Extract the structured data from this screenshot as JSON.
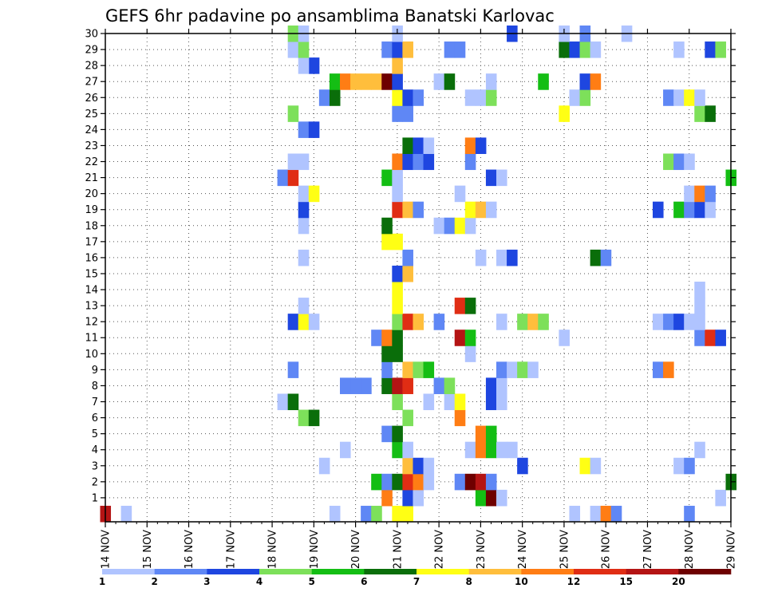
{
  "chart_data": {
    "type": "heatmap",
    "title": "GEFS 6hr padavine po ansamblima Banatski Karlovac",
    "x_tick_labels": [
      "14 NOV",
      "15 NOV",
      "16 NOV",
      "17 NOV",
      "18 NOV",
      "19 NOV",
      "20 NOV",
      "21 NOV",
      "22 NOV",
      "23 NOV",
      "24 NOV",
      "25 NOV",
      "26 NOV",
      "27 NOV",
      "28 NOV",
      "29 NOV"
    ],
    "y_tick_labels": [
      "1",
      "2",
      "3",
      "4",
      "5",
      "6",
      "7",
      "8",
      "9",
      "10",
      "11",
      "12",
      "13",
      "14",
      "15",
      "16",
      "17",
      "18",
      "19",
      "20",
      "21",
      "22",
      "23",
      "24",
      "25",
      "26",
      "27",
      "28",
      "29",
      "30"
    ],
    "x_range_days": [
      14,
      29
    ],
    "y_range": [
      0,
      30
    ],
    "grid": true,
    "colorbar": {
      "placement": "bottom",
      "tick_labels": [
        "1",
        "2",
        "3",
        "4",
        "5",
        "6",
        "7",
        "8",
        "10",
        "12",
        "15",
        "20"
      ],
      "colors": [
        "#b0c4ff",
        "#5f87f5",
        "#1e46e0",
        "#7de05a",
        "#14be14",
        "#0a6e0a",
        "#ffff14",
        "#ffbe3c",
        "#ff7d14",
        "#e02d14",
        "#b41414",
        "#6e0000"
      ]
    },
    "cells": [
      {
        "x": "19.5",
        "y": 0,
        "c": 0
      },
      {
        "x": "28.0",
        "y": 0,
        "c": 1
      },
      {
        "x": "20.25",
        "y": 0,
        "c": 1
      },
      {
        "x": "20.5",
        "y": 0,
        "c": 3
      },
      {
        "x": "21.0",
        "y": 0,
        "c": 6
      },
      {
        "x": "21.25",
        "y": 0,
        "c": 6
      },
      {
        "x": "14.0",
        "y": 0,
        "c": 10
      },
      {
        "x": "14.5",
        "y": 0,
        "c": 0
      },
      {
        "x": "25.25",
        "y": 0,
        "c": 0
      },
      {
        "x": "25.75",
        "y": 0,
        "c": 0
      },
      {
        "x": "26.0",
        "y": 0,
        "c": 8
      },
      {
        "x": "26.25",
        "y": 0,
        "c": 1
      },
      {
        "x": "20.75",
        "y": 1,
        "c": 8
      },
      {
        "x": "21.25",
        "y": 1,
        "c": 2
      },
      {
        "x": "21.5",
        "y": 1,
        "c": 0
      },
      {
        "x": "23.0",
        "y": 1,
        "c": 4
      },
      {
        "x": "23.25",
        "y": 1,
        "c": 11
      },
      {
        "x": "23.5",
        "y": 1,
        "c": 0
      },
      {
        "x": "28.75",
        "y": 1,
        "c": 0
      },
      {
        "x": "20.5",
        "y": 2,
        "c": 4
      },
      {
        "x": "20.75",
        "y": 2,
        "c": 1
      },
      {
        "x": "21.0",
        "y": 2,
        "c": 5
      },
      {
        "x": "21.25",
        "y": 2,
        "c": 9
      },
      {
        "x": "21.5",
        "y": 2,
        "c": 8
      },
      {
        "x": "21.75",
        "y": 2,
        "c": 0
      },
      {
        "x": "22.5",
        "y": 2,
        "c": 1
      },
      {
        "x": "22.75",
        "y": 2,
        "c": 11
      },
      {
        "x": "23.0",
        "y": 2,
        "c": 10
      },
      {
        "x": "23.25",
        "y": 2,
        "c": 1
      },
      {
        "x": "29.0",
        "y": 2,
        "c": 5
      },
      {
        "x": "19.25",
        "y": 3,
        "c": 0
      },
      {
        "x": "21.25",
        "y": 3,
        "c": 7
      },
      {
        "x": "21.5",
        "y": 3,
        "c": 2
      },
      {
        "x": "21.75",
        "y": 3,
        "c": 0
      },
      {
        "x": "24.0",
        "y": 3,
        "c": 2
      },
      {
        "x": "25.5",
        "y": 3,
        "c": 6
      },
      {
        "x": "25.75",
        "y": 3,
        "c": 0
      },
      {
        "x": "27.75",
        "y": 3,
        "c": 0
      },
      {
        "x": "28.0",
        "y": 3,
        "c": 1
      },
      {
        "x": "19.75",
        "y": 4,
        "c": 0
      },
      {
        "x": "21.0",
        "y": 4,
        "c": 4
      },
      {
        "x": "21.25",
        "y": 4,
        "c": 0
      },
      {
        "x": "22.75",
        "y": 4,
        "c": 0
      },
      {
        "x": "23.0",
        "y": 4,
        "c": 8
      },
      {
        "x": "23.25",
        "y": 4,
        "c": 4
      },
      {
        "x": "23.5",
        "y": 4,
        "c": 0
      },
      {
        "x": "23.75",
        "y": 4,
        "c": 0
      },
      {
        "x": "28.25",
        "y": 4,
        "c": 0
      },
      {
        "x": "20.75",
        "y": 5,
        "c": 1
      },
      {
        "x": "21.0",
        "y": 5,
        "c": 5
      },
      {
        "x": "23.0",
        "y": 5,
        "c": 8
      },
      {
        "x": "23.25",
        "y": 5,
        "c": 4
      },
      {
        "x": "18.75",
        "y": 6,
        "c": 3
      },
      {
        "x": "19.0",
        "y": 6,
        "c": 5
      },
      {
        "x": "21.25",
        "y": 6,
        "c": 3
      },
      {
        "x": "22.5",
        "y": 6,
        "c": 8
      },
      {
        "x": "18.25",
        "y": 7,
        "c": 0
      },
      {
        "x": "18.5",
        "y": 7,
        "c": 5
      },
      {
        "x": "21.0",
        "y": 7,
        "c": 3
      },
      {
        "x": "21.75",
        "y": 7,
        "c": 0
      },
      {
        "x": "22.25",
        "y": 7,
        "c": 0
      },
      {
        "x": "22.5",
        "y": 7,
        "c": 6
      },
      {
        "x": "23.25",
        "y": 7,
        "c": 2
      },
      {
        "x": "23.5",
        "y": 7,
        "c": 0
      },
      {
        "x": "19.75",
        "y": 8,
        "c": 1
      },
      {
        "x": "20.0",
        "y": 8,
        "c": 1
      },
      {
        "x": "20.25",
        "y": 8,
        "c": 1
      },
      {
        "x": "20.75",
        "y": 8,
        "c": 5
      },
      {
        "x": "21.0",
        "y": 8,
        "c": 10
      },
      {
        "x": "21.25",
        "y": 8,
        "c": 9
      },
      {
        "x": "22.0",
        "y": 8,
        "c": 1
      },
      {
        "x": "22.25",
        "y": 8,
        "c": 3
      },
      {
        "x": "23.25",
        "y": 8,
        "c": 2
      },
      {
        "x": "23.5",
        "y": 8,
        "c": 0
      },
      {
        "x": "18.5",
        "y": 9,
        "c": 1
      },
      {
        "x": "20.75",
        "y": 9,
        "c": 1
      },
      {
        "x": "21.25",
        "y": 9,
        "c": 7
      },
      {
        "x": "21.5",
        "y": 9,
        "c": 3
      },
      {
        "x": "21.75",
        "y": 9,
        "c": 4
      },
      {
        "x": "23.5",
        "y": 9,
        "c": 1
      },
      {
        "x": "23.75",
        "y": 9,
        "c": 0
      },
      {
        "x": "24.0",
        "y": 9,
        "c": 3
      },
      {
        "x": "24.25",
        "y": 9,
        "c": 0
      },
      {
        "x": "27.25",
        "y": 9,
        "c": 1
      },
      {
        "x": "27.5",
        "y": 9,
        "c": 8
      },
      {
        "x": "20.75",
        "y": 10,
        "c": 5
      },
      {
        "x": "21.0",
        "y": 10,
        "c": 5
      },
      {
        "x": "22.75",
        "y": 10,
        "c": 0
      },
      {
        "x": "20.5",
        "y": 11,
        "c": 1
      },
      {
        "x": "20.75",
        "y": 11,
        "c": 8
      },
      {
        "x": "21.0",
        "y": 11,
        "c": 5
      },
      {
        "x": "22.5",
        "y": 11,
        "c": 10
      },
      {
        "x": "22.75",
        "y": 11,
        "c": 4
      },
      {
        "x": "25.0",
        "y": 11,
        "c": 0
      },
      {
        "x": "28.25",
        "y": 11,
        "c": 1
      },
      {
        "x": "28.5",
        "y": 11,
        "c": 9
      },
      {
        "x": "28.75",
        "y": 11,
        "c": 2
      },
      {
        "x": "18.5",
        "y": 12,
        "c": 2
      },
      {
        "x": "18.75",
        "y": 12,
        "c": 6
      },
      {
        "x": "19.0",
        "y": 12,
        "c": 0
      },
      {
        "x": "21.0",
        "y": 12,
        "c": 3
      },
      {
        "x": "21.25",
        "y": 12,
        "c": 9
      },
      {
        "x": "21.5",
        "y": 12,
        "c": 7
      },
      {
        "x": "22.0",
        "y": 12,
        "c": 1
      },
      {
        "x": "23.5",
        "y": 12,
        "c": 0
      },
      {
        "x": "24.0",
        "y": 12,
        "c": 3
      },
      {
        "x": "24.25",
        "y": 12,
        "c": 7
      },
      {
        "x": "24.5",
        "y": 12,
        "c": 3
      },
      {
        "x": "27.25",
        "y": 12,
        "c": 0
      },
      {
        "x": "27.5",
        "y": 12,
        "c": 1
      },
      {
        "x": "27.75",
        "y": 12,
        "c": 2
      },
      {
        "x": "28.0",
        "y": 12,
        "c": 0
      },
      {
        "x": "28.25",
        "y": 12,
        "c": 0
      },
      {
        "x": "18.75",
        "y": 13,
        "c": 0
      },
      {
        "x": "21.0",
        "y": 13,
        "c": 6
      },
      {
        "x": "22.5",
        "y": 13,
        "c": 9
      },
      {
        "x": "22.75",
        "y": 13,
        "c": 5
      },
      {
        "x": "28.25",
        "y": 13,
        "c": 0
      },
      {
        "x": "21.0",
        "y": 14,
        "c": 6
      },
      {
        "x": "28.25",
        "y": 14,
        "c": 0
      },
      {
        "x": "21.0",
        "y": 15,
        "c": 2
      },
      {
        "x": "21.25",
        "y": 15,
        "c": 7
      },
      {
        "x": "18.75",
        "y": 16,
        "c": 0
      },
      {
        "x": "21.25",
        "y": 16,
        "c": 1
      },
      {
        "x": "23.0",
        "y": 16,
        "c": 0
      },
      {
        "x": "23.5",
        "y": 16,
        "c": 0
      },
      {
        "x": "23.75",
        "y": 16,
        "c": 2
      },
      {
        "x": "25.75",
        "y": 16,
        "c": 5
      },
      {
        "x": "26.0",
        "y": 16,
        "c": 1
      },
      {
        "x": "20.75",
        "y": 17,
        "c": 6
      },
      {
        "x": "21.0",
        "y": 17,
        "c": 6
      },
      {
        "x": "18.75",
        "y": 18,
        "c": 0
      },
      {
        "x": "20.75",
        "y": 18,
        "c": 5
      },
      {
        "x": "22.0",
        "y": 18,
        "c": 0
      },
      {
        "x": "22.25",
        "y": 18,
        "c": 1
      },
      {
        "x": "22.5",
        "y": 18,
        "c": 6
      },
      {
        "x": "22.75",
        "y": 18,
        "c": 0
      },
      {
        "x": "18.75",
        "y": 19,
        "c": 2
      },
      {
        "x": "21.0",
        "y": 19,
        "c": 9
      },
      {
        "x": "21.25",
        "y": 19,
        "c": 7
      },
      {
        "x": "21.5",
        "y": 19,
        "c": 1
      },
      {
        "x": "22.75",
        "y": 19,
        "c": 6
      },
      {
        "x": "23.0",
        "y": 19,
        "c": 7
      },
      {
        "x": "23.25",
        "y": 19,
        "c": 0
      },
      {
        "x": "27.25",
        "y": 19,
        "c": 2
      },
      {
        "x": "27.75",
        "y": 19,
        "c": 4
      },
      {
        "x": "28.0",
        "y": 19,
        "c": 1
      },
      {
        "x": "28.25",
        "y": 19,
        "c": 2
      },
      {
        "x": "28.5",
        "y": 19,
        "c": 0
      },
      {
        "x": "18.75",
        "y": 20,
        "c": 0
      },
      {
        "x": "19.0",
        "y": 20,
        "c": 6
      },
      {
        "x": "21.0",
        "y": 20,
        "c": 0
      },
      {
        "x": "22.5",
        "y": 20,
        "c": 0
      },
      {
        "x": "28.0",
        "y": 20,
        "c": 0
      },
      {
        "x": "28.25",
        "y": 20,
        "c": 8
      },
      {
        "x": "28.5",
        "y": 20,
        "c": 1
      },
      {
        "x": "18.25",
        "y": 21,
        "c": 1
      },
      {
        "x": "18.5",
        "y": 21,
        "c": 9
      },
      {
        "x": "20.75",
        "y": 21,
        "c": 4
      },
      {
        "x": "21.0",
        "y": 21,
        "c": 0
      },
      {
        "x": "23.25",
        "y": 21,
        "c": 2
      },
      {
        "x": "23.5",
        "y": 21,
        "c": 0
      },
      {
        "x": "29.0",
        "y": 21,
        "c": 4
      },
      {
        "x": "18.5",
        "y": 22,
        "c": 0
      },
      {
        "x": "18.75",
        "y": 22,
        "c": 0
      },
      {
        "x": "21.0",
        "y": 22,
        "c": 8
      },
      {
        "x": "21.25",
        "y": 22,
        "c": 2
      },
      {
        "x": "21.5",
        "y": 22,
        "c": 1
      },
      {
        "x": "21.75",
        "y": 22,
        "c": 2
      },
      {
        "x": "22.75",
        "y": 22,
        "c": 1
      },
      {
        "x": "27.5",
        "y": 22,
        "c": 3
      },
      {
        "x": "27.75",
        "y": 22,
        "c": 1
      },
      {
        "x": "28.0",
        "y": 22,
        "c": 0
      },
      {
        "x": "21.25",
        "y": 23,
        "c": 5
      },
      {
        "x": "21.5",
        "y": 23,
        "c": 2
      },
      {
        "x": "21.75",
        "y": 23,
        "c": 0
      },
      {
        "x": "22.75",
        "y": 23,
        "c": 8
      },
      {
        "x": "23.0",
        "y": 23,
        "c": 2
      },
      {
        "x": "18.75",
        "y": 24,
        "c": 1
      },
      {
        "x": "19.0",
        "y": 24,
        "c": 2
      },
      {
        "x": "18.5",
        "y": 25,
        "c": 3
      },
      {
        "x": "21.0",
        "y": 25,
        "c": 1
      },
      {
        "x": "21.25",
        "y": 25,
        "c": 1
      },
      {
        "x": "25.0",
        "y": 25,
        "c": 6
      },
      {
        "x": "28.25",
        "y": 25,
        "c": 3
      },
      {
        "x": "28.5",
        "y": 25,
        "c": 5
      },
      {
        "x": "19.25",
        "y": 26,
        "c": 1
      },
      {
        "x": "19.5",
        "y": 26,
        "c": 5
      },
      {
        "x": "21.0",
        "y": 26,
        "c": 6
      },
      {
        "x": "21.25",
        "y": 26,
        "c": 2
      },
      {
        "x": "21.5",
        "y": 26,
        "c": 1
      },
      {
        "x": "22.75",
        "y": 26,
        "c": 0
      },
      {
        "x": "23.0",
        "y": 26,
        "c": 0
      },
      {
        "x": "23.25",
        "y": 26,
        "c": 3
      },
      {
        "x": "25.25",
        "y": 26,
        "c": 0
      },
      {
        "x": "25.5",
        "y": 26,
        "c": 3
      },
      {
        "x": "27.5",
        "y": 26,
        "c": 1
      },
      {
        "x": "27.75",
        "y": 26,
        "c": 0
      },
      {
        "x": "28.0",
        "y": 26,
        "c": 6
      },
      {
        "x": "28.25",
        "y": 26,
        "c": 0
      },
      {
        "x": "19.5",
        "y": 27,
        "c": 4
      },
      {
        "x": "19.75",
        "y": 27,
        "c": 8
      },
      {
        "x": "20.0",
        "y": 27,
        "c": 7
      },
      {
        "x": "20.25",
        "y": 27,
        "c": 7
      },
      {
        "x": "20.5",
        "y": 27,
        "c": 7
      },
      {
        "x": "20.75",
        "y": 27,
        "c": 11
      },
      {
        "x": "21.0",
        "y": 27,
        "c": 2
      },
      {
        "x": "22.0",
        "y": 27,
        "c": 0
      },
      {
        "x": "22.25",
        "y": 27,
        "c": 5
      },
      {
        "x": "23.25",
        "y": 27,
        "c": 0
      },
      {
        "x": "24.5",
        "y": 27,
        "c": 4
      },
      {
        "x": "25.5",
        "y": 27,
        "c": 2
      },
      {
        "x": "25.75",
        "y": 27,
        "c": 8
      },
      {
        "x": "19.0",
        "y": 28,
        "c": 2
      },
      {
        "x": "18.75",
        "y": 28,
        "c": 0
      },
      {
        "x": "21.0",
        "y": 28,
        "c": 7
      },
      {
        "x": "18.5",
        "y": 29,
        "c": 0
      },
      {
        "x": "18.75",
        "y": 29,
        "c": 3
      },
      {
        "x": "20.75",
        "y": 29,
        "c": 1
      },
      {
        "x": "21.0",
        "y": 29,
        "c": 2
      },
      {
        "x": "21.25",
        "y": 29,
        "c": 7
      },
      {
        "x": "22.25",
        "y": 29,
        "c": 1
      },
      {
        "x": "22.5",
        "y": 29,
        "c": 1
      },
      {
        "x": "25.0",
        "y": 29,
        "c": 5
      },
      {
        "x": "25.25",
        "y": 29,
        "c": 2
      },
      {
        "x": "25.5",
        "y": 29,
        "c": 3
      },
      {
        "x": "25.75",
        "y": 29,
        "c": 0
      },
      {
        "x": "27.75",
        "y": 29,
        "c": 0
      },
      {
        "x": "28.5",
        "y": 29,
        "c": 2
      },
      {
        "x": "28.75",
        "y": 29,
        "c": 3
      },
      {
        "x": "18.5",
        "y": 30,
        "c": 3
      },
      {
        "x": "18.75",
        "y": 30,
        "c": 0
      },
      {
        "x": "21.0",
        "y": 30,
        "c": 0
      },
      {
        "x": "23.75",
        "y": 30,
        "c": 2
      },
      {
        "x": "25.0",
        "y": 30,
        "c": 0
      },
      {
        "x": "25.5",
        "y": 30,
        "c": 1
      },
      {
        "x": "26.5",
        "y": 30,
        "c": 0
      }
    ]
  }
}
